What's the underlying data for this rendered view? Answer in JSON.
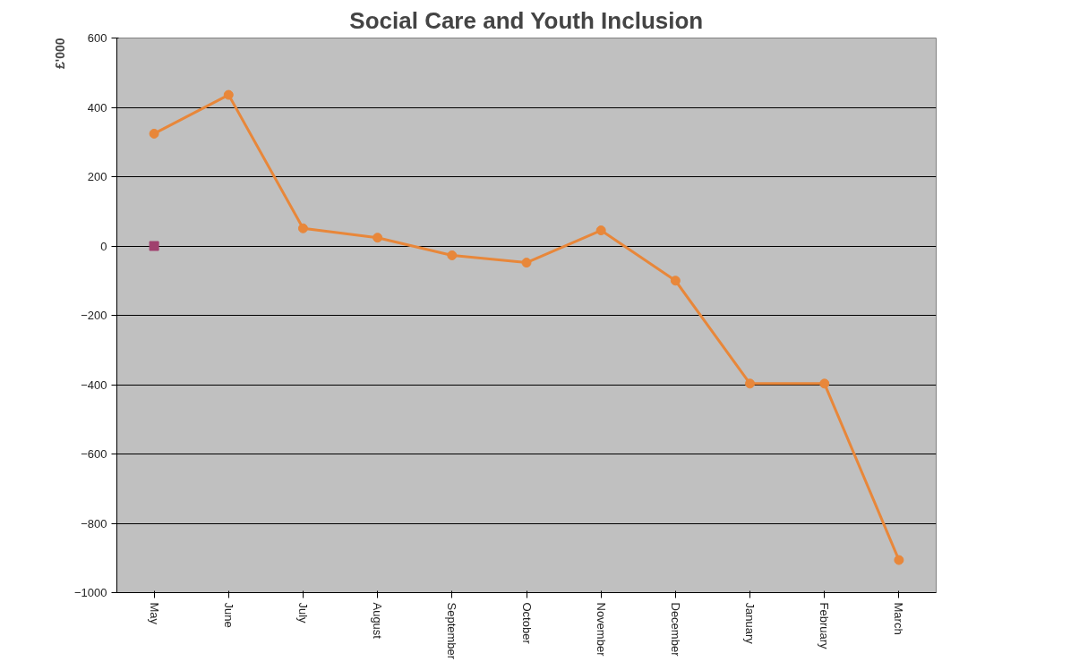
{
  "chart_data": {
    "type": "line",
    "title": "Social Care and Youth Inclusion",
    "ylabel": "£'000",
    "categories": [
      "May",
      "June",
      "July",
      "August",
      "September",
      "October",
      "November",
      "December",
      "January",
      "February",
      "March"
    ],
    "series": [
      {
        "color": "#e8873a",
        "marker": "circle",
        "values": [
          324,
          436,
          51,
          24,
          -27,
          -48,
          45,
          -100,
          -397,
          -397,
          -906
        ]
      },
      {
        "type": "scatter",
        "color": "#a0406e",
        "marker": "square",
        "values": [
          0,
          null,
          null,
          null,
          null,
          null,
          null,
          null,
          null,
          null,
          null
        ]
      }
    ],
    "ylim": [
      -1000,
      600
    ],
    "yticks": [
      -1000,
      -800,
      -600,
      -400,
      -200,
      0,
      200,
      400,
      600
    ],
    "grid": "y"
  }
}
